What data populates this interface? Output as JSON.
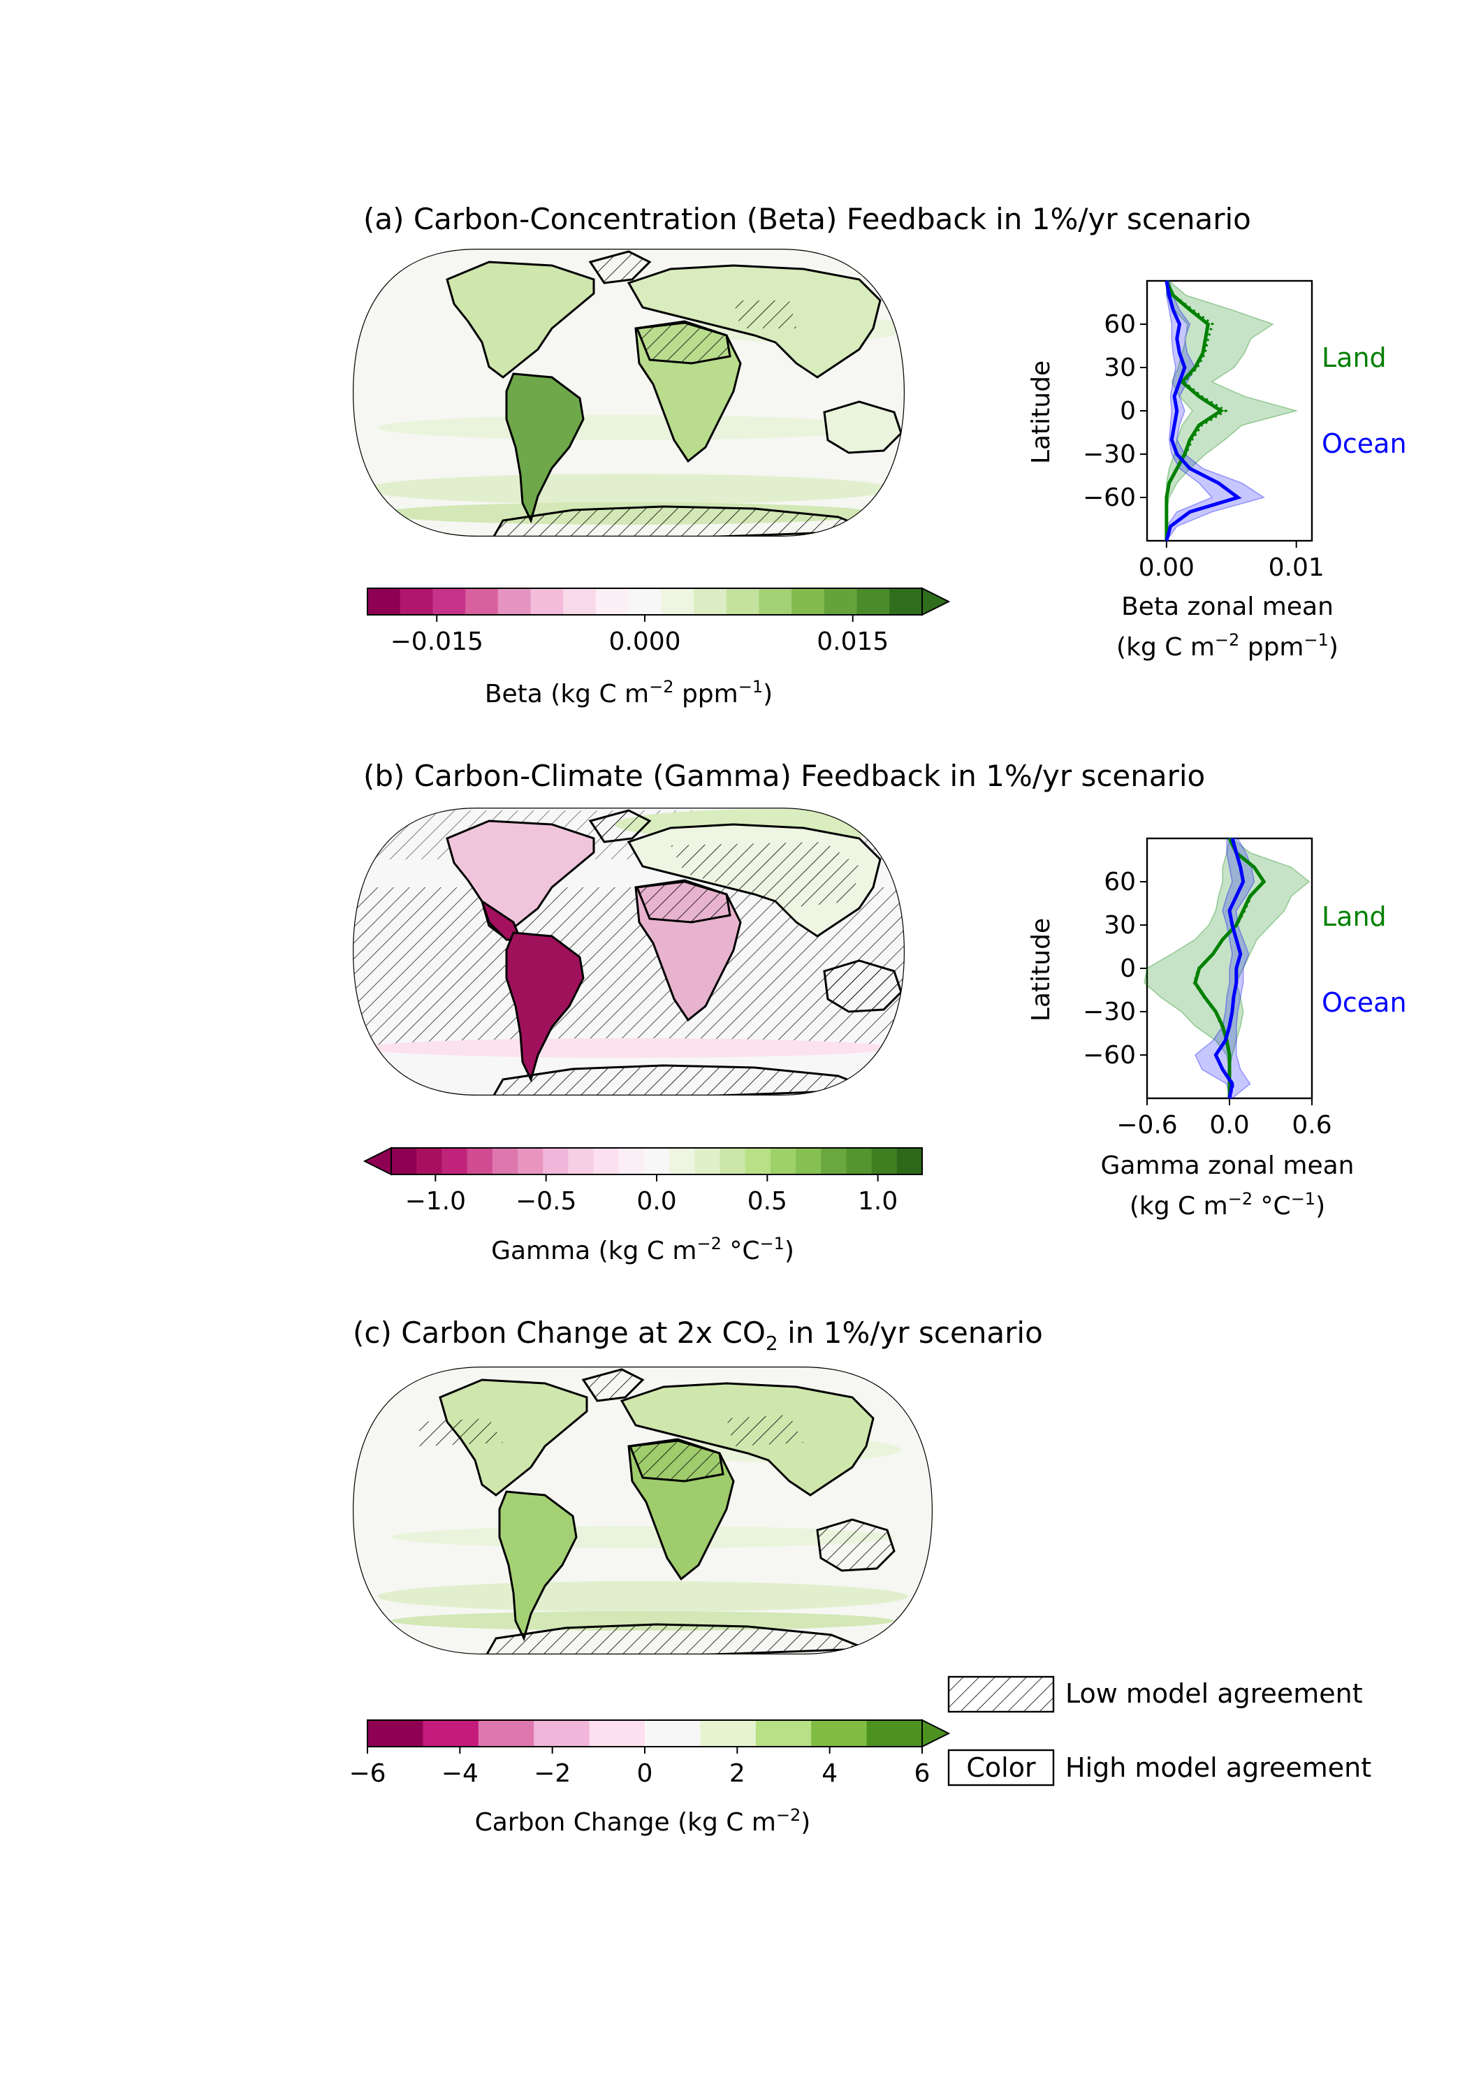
{
  "colors": {
    "land": "#008000",
    "ocean": "#0000ff",
    "beta_scale": [
      "#8e0152",
      "#b0166b",
      "#c7338a",
      "#d9609f",
      "#e594c1",
      "#f2bcda",
      "#f8d9ea",
      "#fcf0f6",
      "#f7f7f7",
      "#eef6e2",
      "#dcedc5",
      "#c4e19d",
      "#a5d175",
      "#84bb4f",
      "#65a33a",
      "#4a8c2a",
      "#2f6e1c"
    ],
    "carbon_scale": [
      "#8e0152",
      "#c51b7d",
      "#de77ae",
      "#f1b6da",
      "#fde0ef",
      "#f7f7f7",
      "#e6f5d0",
      "#b8e186",
      "#7fbc41",
      "#4d9221"
    ]
  },
  "panels": [
    {
      "id": "a",
      "title": "(a) Carbon-Concentration (Beta) Feedback in 1%/yr scenario",
      "colorbar": {
        "label_main": "Beta (kg C m",
        "sup1": "−2",
        "label_mid": " ppm",
        "sup2": "−1",
        "label_end": ")",
        "ticks": [
          "−0.015",
          "0.000",
          "0.015"
        ],
        "tick_values": [
          -0.015,
          0.0,
          0.015
        ],
        "range": [
          -0.02,
          0.02
        ],
        "extend": "max"
      },
      "zonal": {
        "ylabel": "Latitude",
        "xlabel": "Beta zonal mean",
        "unit_main": "(kg C m",
        "unit_sup1": "−2",
        "unit_mid": " ppm",
        "unit_sup2": "−1",
        "unit_end": ")",
        "xticks": [
          "0.00",
          "0.01"
        ],
        "xtick_values": [
          0.0,
          0.01
        ],
        "xlim": [
          -0.0015,
          0.0112
        ],
        "yticks": [
          "60",
          "30",
          "0",
          "−30",
          "−60"
        ],
        "ytick_values": [
          60,
          30,
          0,
          -30,
          -60
        ],
        "legend_land": "Land",
        "legend_ocean": "Ocean"
      }
    },
    {
      "id": "b",
      "title": "(b) Carbon-Climate (Gamma) Feedback in 1%/yr scenario",
      "colorbar": {
        "label_main": "Gamma (kg C m",
        "sup1": "−2",
        "label_mid": " °C",
        "sup2": "−1",
        "label_end": ")",
        "ticks": [
          "−1.0",
          "−0.5",
          "0.0",
          "0.5",
          "1.0"
        ],
        "tick_values": [
          -1.0,
          -0.5,
          0.0,
          0.5,
          1.0
        ],
        "range": [
          -1.2,
          1.2
        ],
        "extend": "min"
      },
      "zonal": {
        "ylabel": "Latitude",
        "xlabel": "Gamma zonal mean",
        "unit_main": "(kg C m",
        "unit_sup1": "−2",
        "unit_mid": " °C",
        "unit_sup2": "−1",
        "unit_end": ")",
        "xticks": [
          "−0.6",
          "0.0",
          "0.6"
        ],
        "xtick_values": [
          -0.6,
          0.0,
          0.6
        ],
        "xlim": [
          -0.6,
          0.6
        ],
        "yticks": [
          "60",
          "30",
          "0",
          "−30",
          "−60"
        ],
        "ytick_values": [
          60,
          30,
          0,
          -30,
          -60
        ],
        "legend_land": "Land",
        "legend_ocean": "Ocean"
      }
    },
    {
      "id": "c",
      "title_main": "(c) Carbon Change at 2x CO",
      "title_sub": "2",
      "title_end": " in 1%/yr scenario",
      "colorbar": {
        "label_main": "Carbon Change (kg C m",
        "sup1": "−2",
        "label_end": ")",
        "ticks": [
          "−6",
          "−4",
          "−2",
          "0",
          "2",
          "4",
          "6"
        ],
        "tick_values": [
          -6,
          -4,
          -2,
          0,
          2,
          4,
          6
        ],
        "range": [
          -6,
          6
        ],
        "extend": "max"
      }
    }
  ],
  "legend": {
    "hatch_label": "Low model agreement",
    "color_box": "Color",
    "color_label": "High model agreement"
  },
  "chart_data": [
    {
      "type": "area",
      "panel": "a",
      "ylabel": "Latitude",
      "xlabel": "Beta zonal mean",
      "ylim": [
        -90,
        90
      ],
      "xlim": [
        -0.0015,
        0.0112
      ],
      "lat": [
        -90,
        -80,
        -70,
        -60,
        -50,
        -40,
        -30,
        -20,
        -10,
        0,
        10,
        20,
        30,
        40,
        50,
        60,
        70,
        80,
        90
      ],
      "series": [
        {
          "name": "Land",
          "values": [
            0.0,
            0.0,
            0.0,
            0.0,
            0.0002,
            0.0008,
            0.0014,
            0.0018,
            0.0025,
            0.0042,
            0.0025,
            0.0012,
            0.0022,
            0.0028,
            0.003,
            0.0032,
            0.0018,
            0.0005,
            0.0
          ],
          "lower": [
            0.0,
            0.0,
            0.0,
            0.0,
            0.0,
            0.0002,
            0.0006,
            0.0008,
            0.0012,
            0.002,
            0.001,
            0.0004,
            0.0009,
            0.0012,
            0.0015,
            0.0016,
            0.0006,
            0.0,
            0.0
          ],
          "upper": [
            0.0,
            0.0,
            0.0,
            0.0002,
            0.0008,
            0.0018,
            0.003,
            0.0045,
            0.0058,
            0.01,
            0.006,
            0.0035,
            0.0052,
            0.006,
            0.0065,
            0.0082,
            0.005,
            0.0015,
            0.0002
          ]
        },
        {
          "name": "Ocean",
          "values": [
            0.0,
            0.0003,
            0.0018,
            0.0055,
            0.004,
            0.0018,
            0.0008,
            0.0004,
            0.0006,
            0.0008,
            0.0006,
            0.001,
            0.0014,
            0.001,
            0.0008,
            0.001,
            0.0005,
            0.0002,
            0.0
          ],
          "lower": [
            0.0,
            0.0,
            0.0008,
            0.0035,
            0.0025,
            0.001,
            0.0004,
            0.0002,
            0.0003,
            0.0004,
            0.0003,
            0.0005,
            0.0007,
            0.0005,
            0.0004,
            0.0004,
            0.0002,
            0.0,
            0.0
          ],
          "upper": [
            0.0,
            0.0008,
            0.0035,
            0.0075,
            0.0058,
            0.0028,
            0.0014,
            0.0008,
            0.001,
            0.0014,
            0.001,
            0.0016,
            0.0022,
            0.0016,
            0.0014,
            0.0018,
            0.001,
            0.0005,
            0.0002
          ]
        }
      ]
    },
    {
      "type": "area",
      "panel": "b",
      "ylabel": "Latitude",
      "xlabel": "Gamma zonal mean",
      "ylim": [
        -90,
        90
      ],
      "xlim": [
        -0.6,
        0.6
      ],
      "lat": [
        -90,
        -80,
        -70,
        -60,
        -50,
        -40,
        -30,
        -20,
        -10,
        0,
        10,
        20,
        30,
        40,
        50,
        60,
        70,
        80,
        90
      ],
      "series": [
        {
          "name": "Land",
          "values": [
            0.0,
            0.0,
            0.0,
            0.0,
            -0.02,
            -0.05,
            -0.1,
            -0.18,
            -0.25,
            -0.22,
            -0.12,
            -0.05,
            0.05,
            0.1,
            0.15,
            0.25,
            0.18,
            0.05,
            0.0
          ],
          "lower": [
            0.0,
            0.0,
            0.0,
            -0.02,
            -0.1,
            -0.25,
            -0.35,
            -0.5,
            -0.62,
            -0.6,
            -0.42,
            -0.25,
            -0.15,
            -0.1,
            -0.08,
            -0.05,
            -0.05,
            -0.02,
            0.0
          ],
          "upper": [
            0.0,
            0.0,
            0.0,
            0.02,
            0.05,
            0.08,
            0.1,
            0.08,
            0.05,
            0.1,
            0.15,
            0.2,
            0.3,
            0.4,
            0.45,
            0.58,
            0.45,
            0.15,
            0.02
          ]
        },
        {
          "name": "Ocean",
          "values": [
            0.0,
            0.02,
            -0.05,
            -0.1,
            -0.03,
            0.0,
            0.02,
            0.03,
            0.05,
            0.05,
            0.08,
            0.05,
            0.02,
            0.0,
            0.05,
            0.1,
            0.08,
            0.05,
            0.02
          ],
          "lower": [
            0.0,
            -0.02,
            -0.2,
            -0.25,
            -0.12,
            -0.05,
            -0.03,
            -0.02,
            0.0,
            0.0,
            0.02,
            0.0,
            -0.02,
            -0.05,
            -0.02,
            0.02,
            0.0,
            -0.02,
            -0.02
          ],
          "upper": [
            0.02,
            0.15,
            0.08,
            0.05,
            0.05,
            0.05,
            0.06,
            0.08,
            0.1,
            0.1,
            0.14,
            0.1,
            0.06,
            0.05,
            0.12,
            0.18,
            0.16,
            0.12,
            0.06
          ]
        }
      ]
    }
  ]
}
